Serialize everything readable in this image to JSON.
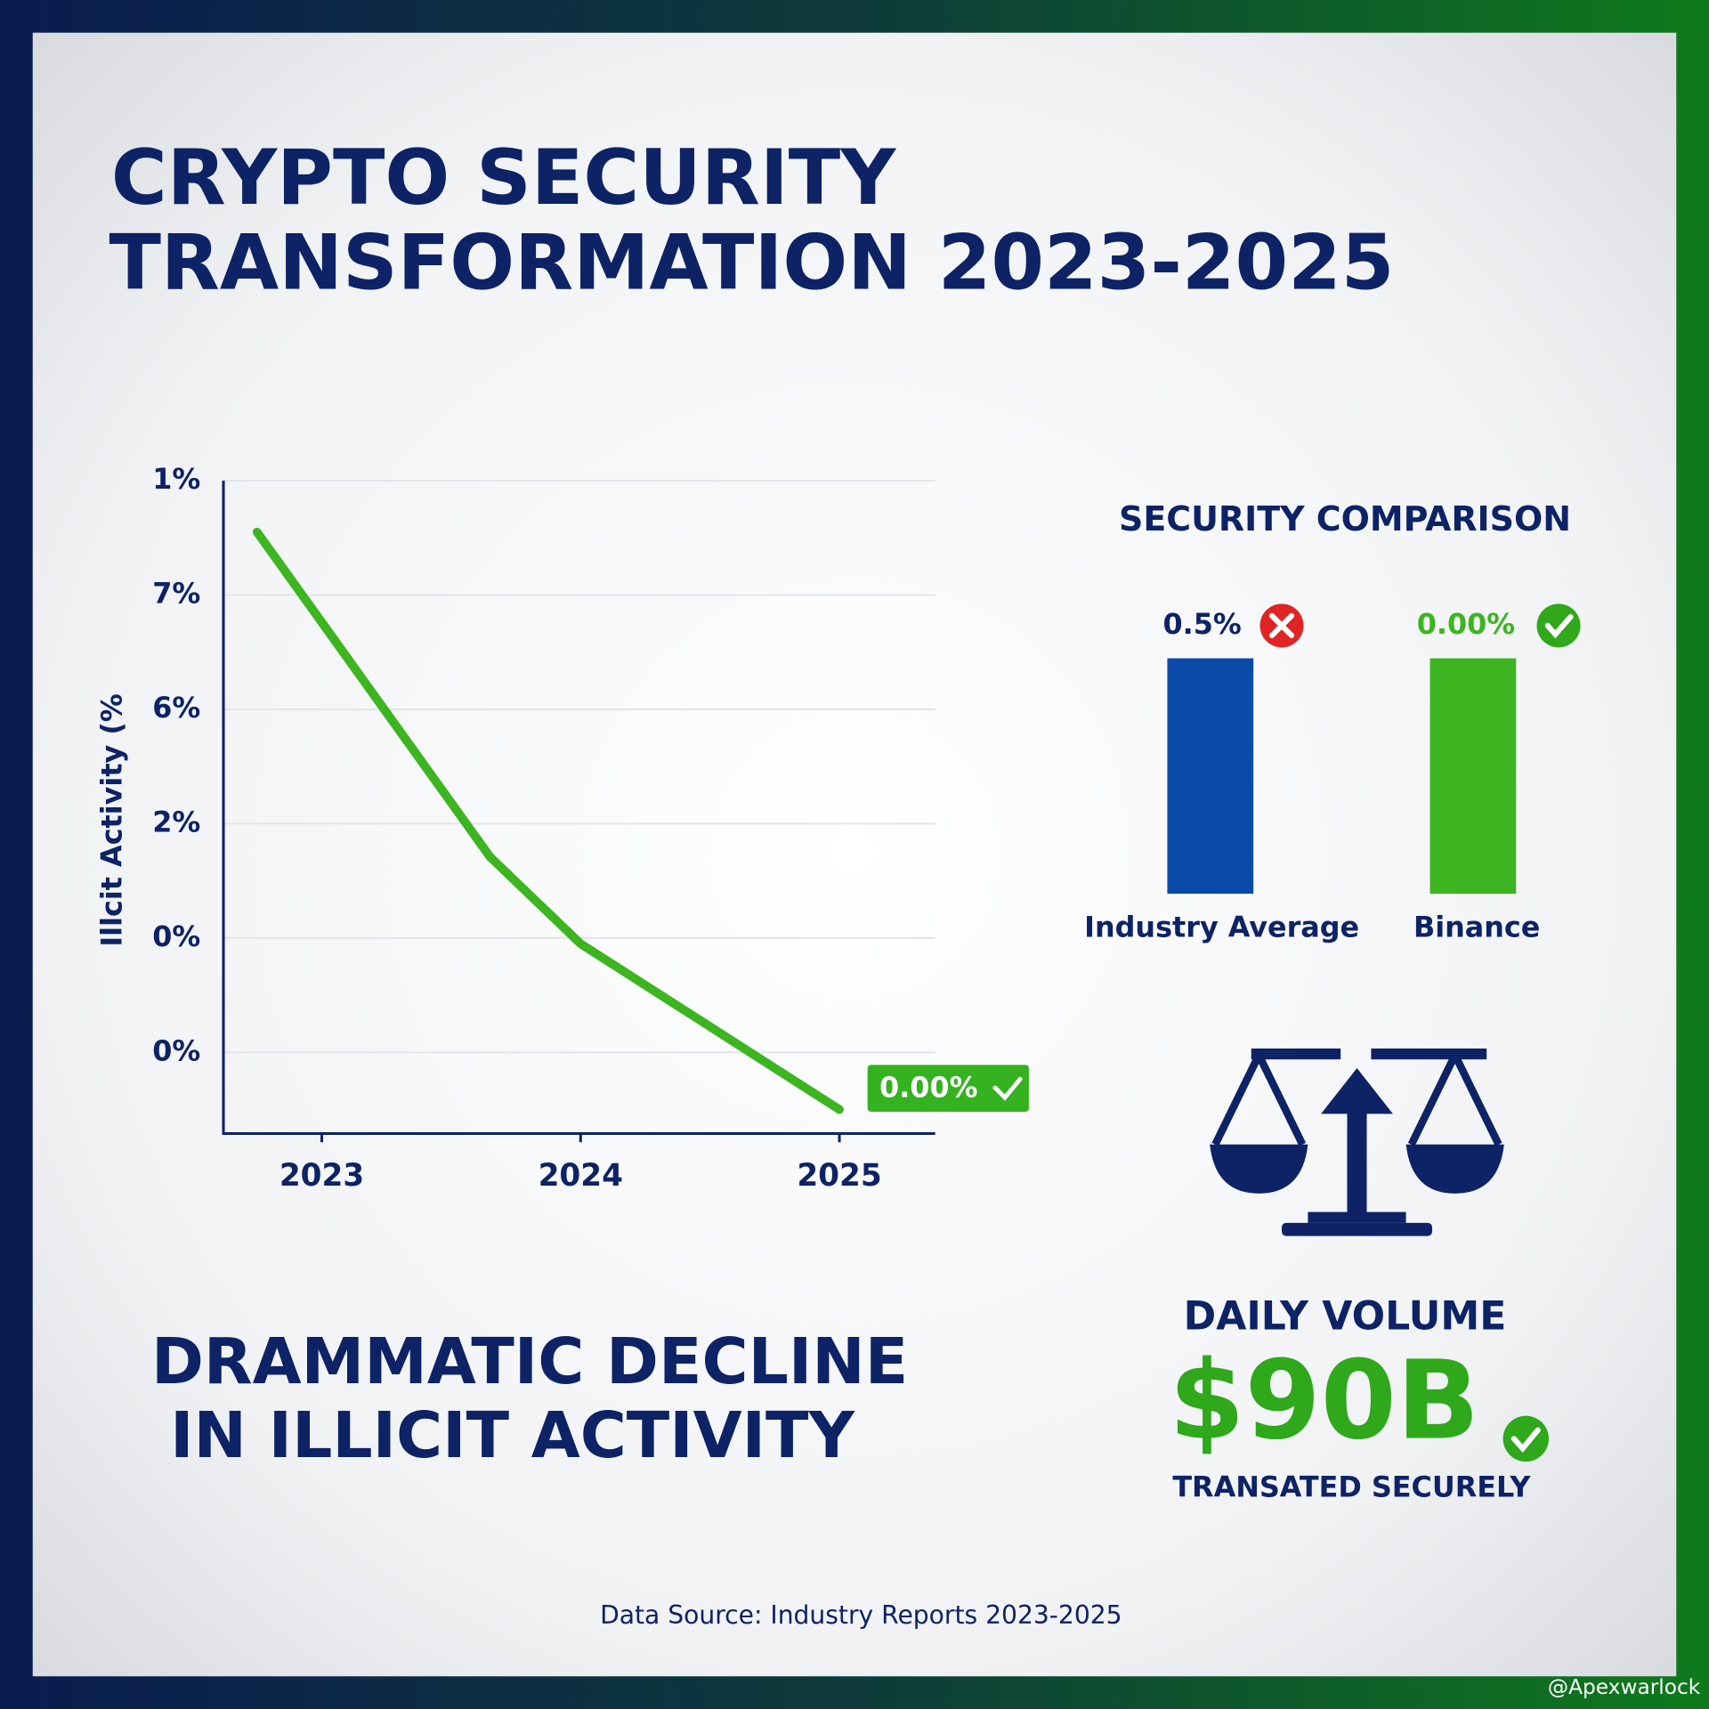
{
  "title_lines": [
    "CRYPTO SECURITY",
    "TRANSFORMATION 2023-2025"
  ],
  "chart_data": {
    "type": "line",
    "y_axis_label": "Illcit Activity (%",
    "y_categories": [
      "0%",
      "0%",
      "2%",
      "6%",
      "7%",
      "1%"
    ],
    "ylim": [
      -0.71,
      5
    ],
    "xlim": [
      2022.62,
      2025.37
    ],
    "xticks": [
      2023,
      2024,
      2025
    ],
    "grid": true,
    "series": [
      {
        "color": "#3cb521",
        "x": [
          2022.75,
          2023.65,
          2024,
          2025
        ],
        "values": [
          4.55,
          1.71,
          0.95,
          -0.5
        ]
      }
    ],
    "annotation": "0.00%"
  },
  "comparison": {
    "title": "SECURITY COMPARISON",
    "bars": [
      {
        "label": "Industry Average",
        "value_label": "0.5%",
        "color": "#0a4aa8"
      },
      {
        "label": "Binance",
        "value_label": "0.00%",
        "color": "#3cb521"
      }
    ]
  },
  "headline_lines": [
    "DRAMMATIC DECLINE",
    "IN ILLICIT ACTIVITY"
  ],
  "volume": {
    "title": "DAILY VOLUME",
    "value": "$90B",
    "caption": "TRANSATED SECURELY"
  },
  "source": "Data Source: Industry Reports 2023-2025",
  "watermark": "@Apexwarlock"
}
